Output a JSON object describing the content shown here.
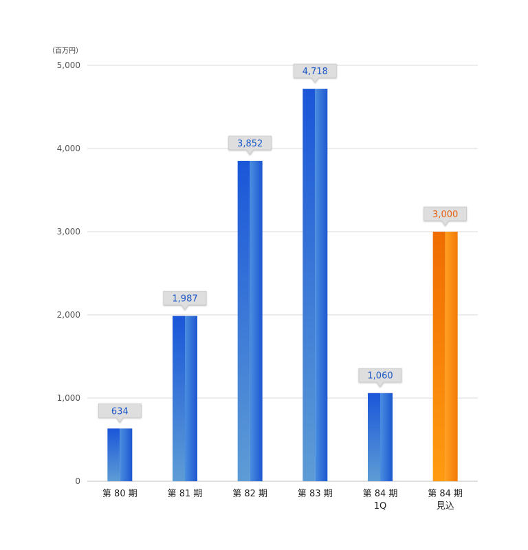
{
  "colors": {
    "blue": "#1f5fd6",
    "blue_light": "#5c9ad8",
    "orange": "#f07a0c",
    "orange_light": "#ff9a1a",
    "label_blue": "#1a57c8",
    "label_orange": "#e8610f",
    "callout_bg": "#dedede"
  },
  "chart_data": {
    "type": "bar",
    "unit_label": "（百万円）",
    "ylim": [
      0,
      5000
    ],
    "yticks": [
      0,
      1000,
      2000,
      3000,
      4000,
      5000
    ],
    "ytick_labels": [
      "0",
      "1,000",
      "2,000",
      "3,000",
      "4,000",
      "5,000"
    ],
    "grid": true,
    "categories": [
      {
        "lines": [
          "第 80 期"
        ]
      },
      {
        "lines": [
          "第 81 期"
        ]
      },
      {
        "lines": [
          "第 82 期"
        ]
      },
      {
        "lines": [
          "第 83 期"
        ]
      },
      {
        "lines": [
          "第 84 期",
          "1Q"
        ]
      },
      {
        "lines": [
          "第 84 期",
          "見込"
        ]
      }
    ],
    "values": [
      634,
      1987,
      3852,
      4718,
      1060,
      3000
    ],
    "value_labels": [
      "634",
      "1,987",
      "3,852",
      "4,718",
      "1,060",
      "3,000"
    ],
    "highlight": [
      false,
      false,
      false,
      false,
      false,
      true
    ]
  }
}
